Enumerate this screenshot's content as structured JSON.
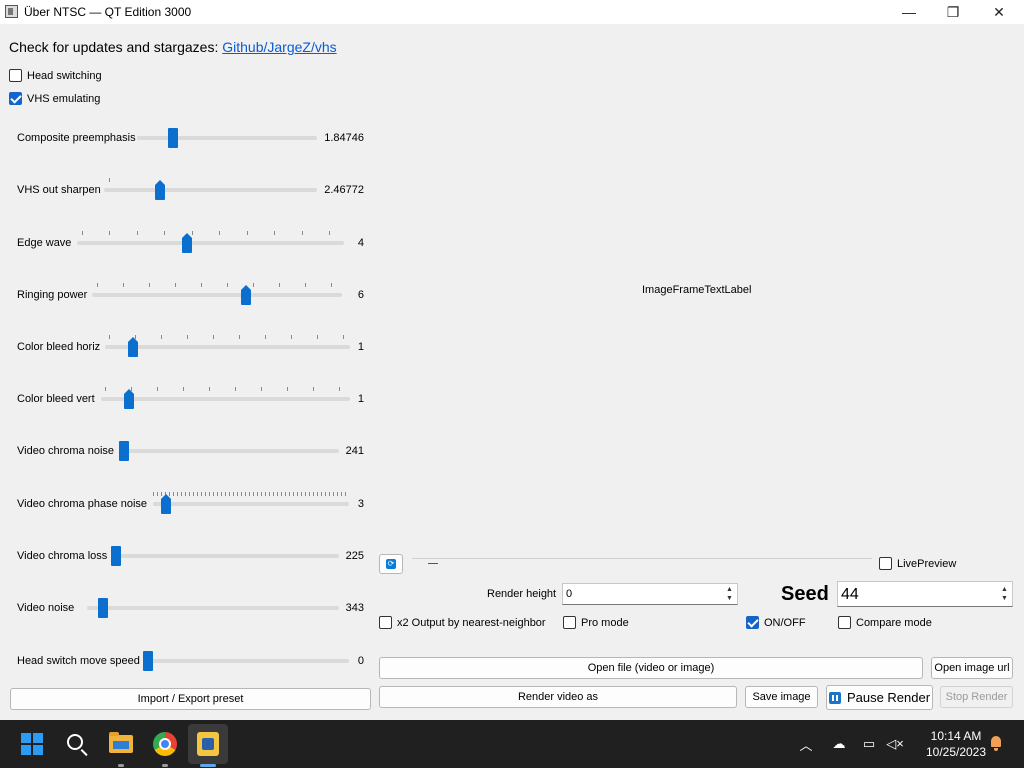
{
  "window": {
    "title": "Über NTSC — QT Edition 3000",
    "minimize_glyph": "—",
    "maximize_glyph": "❐",
    "close_glyph": "✕"
  },
  "header": {
    "update_text": "Check for updates and stargazes: ",
    "update_link": "Github/JargeZ/vhs"
  },
  "options": {
    "head_switching": {
      "label": "Head switching",
      "checked": false
    },
    "vhs_emulating": {
      "label": "VHS emulating",
      "checked": true
    }
  },
  "sliders": [
    {
      "label": "Composite preemphasis",
      "value": "1.84746",
      "level": 0.2
    },
    {
      "label": "VHS out sharpen",
      "value": "2.46772",
      "level": 0.27
    },
    {
      "label": "Edge wave",
      "value": "4",
      "level": 0.4
    },
    {
      "label": "Ringing power",
      "value": "6",
      "level": 0.6
    },
    {
      "label": "Color bleed horiz",
      "value": "1",
      "level": 0.1
    },
    {
      "label": "Color bleed vert",
      "value": "1",
      "level": 0.1
    },
    {
      "label": "Video chroma noise",
      "value": "241",
      "level": 0.02
    },
    {
      "label": "Video chroma phase noise",
      "value": "3",
      "level": 0.06
    },
    {
      "label": "Video chroma loss",
      "value": "225",
      "level": 0.02
    },
    {
      "label": "Video noise",
      "value": "343",
      "level": 0.08
    },
    {
      "label": "Head switch move speed",
      "value": "0",
      "level": 0.0
    }
  ],
  "preset_button": "Import / Export preset",
  "preview": {
    "label": "ImageFrameTextLabel",
    "live_preview": {
      "label": "LivePreview",
      "checked": false
    },
    "refresh_icon": "refresh-icon"
  },
  "render": {
    "height_label": "Render height",
    "height_value": "0",
    "seed_label": "Seed",
    "seed_value": "44",
    "x2_output": {
      "label": "x2 Output by nearest-neighbor",
      "checked": false
    },
    "pro_mode": {
      "label": "Pro mode",
      "checked": false
    },
    "on_off": {
      "label": "ON/OFF",
      "checked": true
    },
    "compare_mode": {
      "label": "Compare mode",
      "checked": false
    },
    "open_file": "Open file (video or image)",
    "open_image_url": "Open image url",
    "render_video_as": "Render video as",
    "save_image": "Save image",
    "pause_render": "Pause Render",
    "stop_render": "Stop Render"
  },
  "taskbar": {
    "time": "10:14 AM",
    "date": "10/25/2023",
    "apps": [
      "start-icon",
      "search-icon",
      "file-explorer-icon",
      "chrome-icon",
      "python-app-icon"
    ]
  }
}
